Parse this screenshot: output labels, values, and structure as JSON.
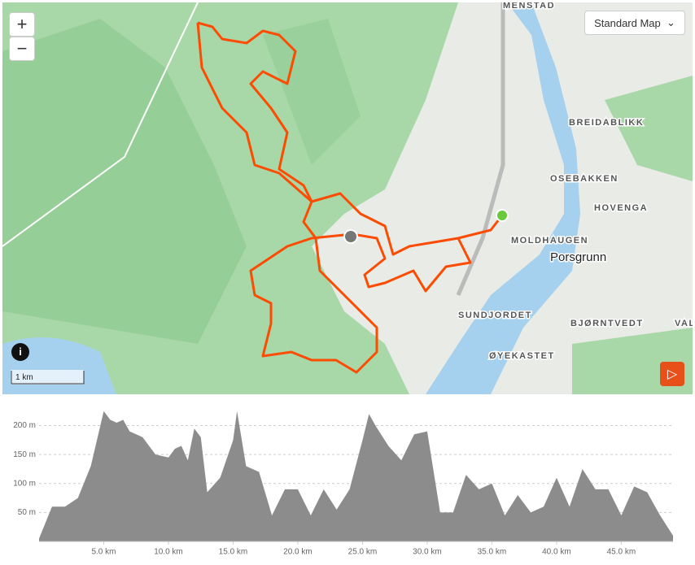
{
  "map": {
    "zoom_in": "+",
    "zoom_out": "−",
    "style_select": "Standard Map",
    "scale": "1 km",
    "labels": [
      "MENSTAD",
      "BREIDABLIKK",
      "OSEBAKKEN",
      "HOVENGA",
      "MOLDHAUGEN",
      "Porsgrunn",
      "SUNDJORDET",
      "BJØRNTVEDT",
      "VAL",
      "ØYEKASTET"
    ]
  },
  "chart_data": {
    "type": "area",
    "color": "#8c8c8c",
    "grid": true,
    "x": [
      0,
      1,
      2,
      3,
      4,
      5,
      5.5,
      6,
      6.5,
      7,
      8,
      9,
      10,
      10.5,
      11,
      11.5,
      12,
      12.5,
      13,
      14,
      15,
      15.3,
      16,
      17,
      18,
      19,
      20,
      21,
      22,
      23,
      24,
      25,
      25.5,
      26,
      27,
      28,
      29,
      30,
      31,
      32,
      33,
      34,
      35,
      36,
      37,
      38,
      39,
      40,
      41,
      42,
      43,
      44,
      45,
      46,
      47,
      48,
      49
    ],
    "values": [
      5,
      60,
      60,
      75,
      130,
      225,
      210,
      205,
      210,
      190,
      180,
      150,
      145,
      160,
      165,
      140,
      195,
      180,
      85,
      110,
      175,
      225,
      130,
      120,
      45,
      90,
      90,
      45,
      90,
      55,
      90,
      175,
      220,
      200,
      165,
      140,
      185,
      190,
      50,
      50,
      115,
      90,
      100,
      45,
      80,
      50,
      60,
      110,
      60,
      125,
      90,
      90,
      45,
      95,
      85,
      45,
      10
    ],
    "xlim": [
      0,
      49
    ],
    "ylim": [
      0,
      240
    ],
    "xticks": [
      {
        "value": 5,
        "label": "5.0 km"
      },
      {
        "value": 10,
        "label": "10.0 km"
      },
      {
        "value": 15,
        "label": "15.0 km"
      },
      {
        "value": 20,
        "label": "20.0 km"
      },
      {
        "value": 25,
        "label": "25.0 km"
      },
      {
        "value": 30,
        "label": "30.0 km"
      },
      {
        "value": 35,
        "label": "35.0 km"
      },
      {
        "value": 40,
        "label": "40.0 km"
      },
      {
        "value": 45,
        "label": "45.0 km"
      }
    ],
    "yticks": [
      {
        "value": 50,
        "label": "50 m"
      },
      {
        "value": 100,
        "label": "100 m"
      },
      {
        "value": 150,
        "label": "150 m"
      },
      {
        "value": 200,
        "label": "200 m"
      }
    ]
  }
}
